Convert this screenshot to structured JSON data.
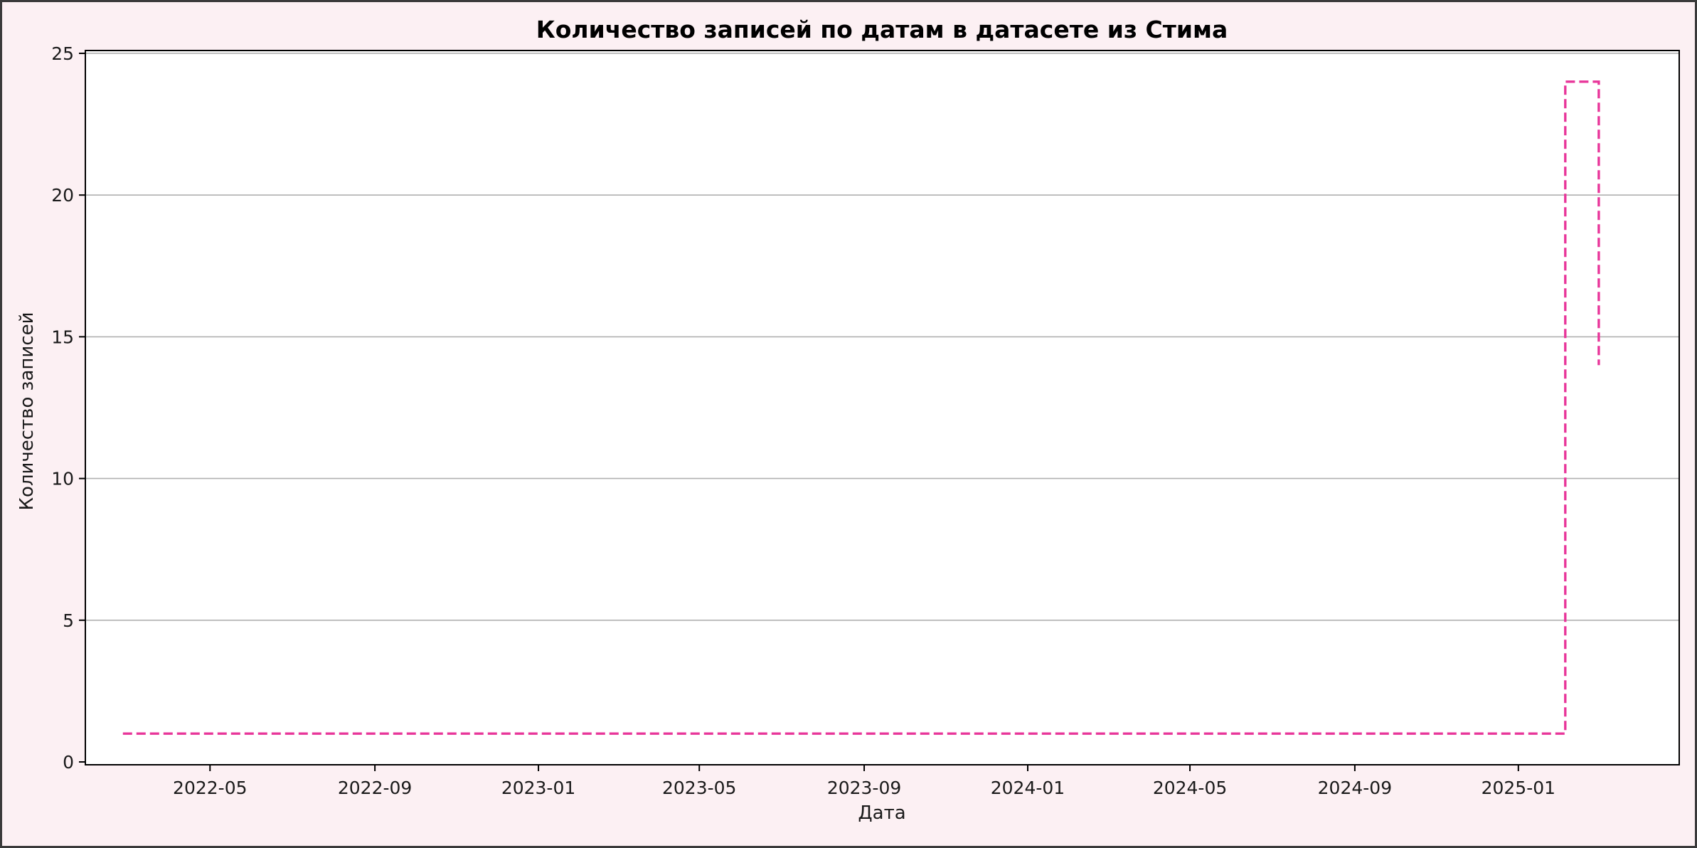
{
  "chart_data": {
    "type": "line",
    "title": "Количество записей по датам в датасете из Стима",
    "xlabel": "Дата",
    "ylabel": "Количество записей",
    "x_axis_type": "date",
    "xlim": [
      "2022-01-28",
      "2025-05-01"
    ],
    "ylim": [
      -0.1,
      25.1
    ],
    "x_ticks": [
      "2022-05-01",
      "2022-09-01",
      "2023-01-01",
      "2023-05-01",
      "2023-09-01",
      "2024-01-01",
      "2024-05-01",
      "2024-09-01",
      "2025-01-01"
    ],
    "x_tick_labels": [
      "2022-05",
      "2022-09",
      "2023-01",
      "2023-05",
      "2023-09",
      "2024-01",
      "2024-05",
      "2024-09",
      "2025-01"
    ],
    "y_ticks": [
      0,
      5,
      10,
      15,
      20,
      25
    ],
    "y_tick_labels": [
      "0",
      "5",
      "10",
      "15",
      "20",
      "25"
    ],
    "grid": "horizontal",
    "series": [
      {
        "line_style": "dashed-steps",
        "color": "#e8369a",
        "x": [
          "2022-02-25",
          "2025-02-05",
          "2025-02-05",
          "2025-03-02",
          "2025-03-02"
        ],
        "y": [
          1,
          1,
          24,
          24,
          14
        ]
      }
    ]
  },
  "colors": {
    "figure_background": "#fcf0f3",
    "plot_background": "#ffffff",
    "grid": "#b0b0b0",
    "axes": "#000000",
    "line": "#e8369a"
  }
}
